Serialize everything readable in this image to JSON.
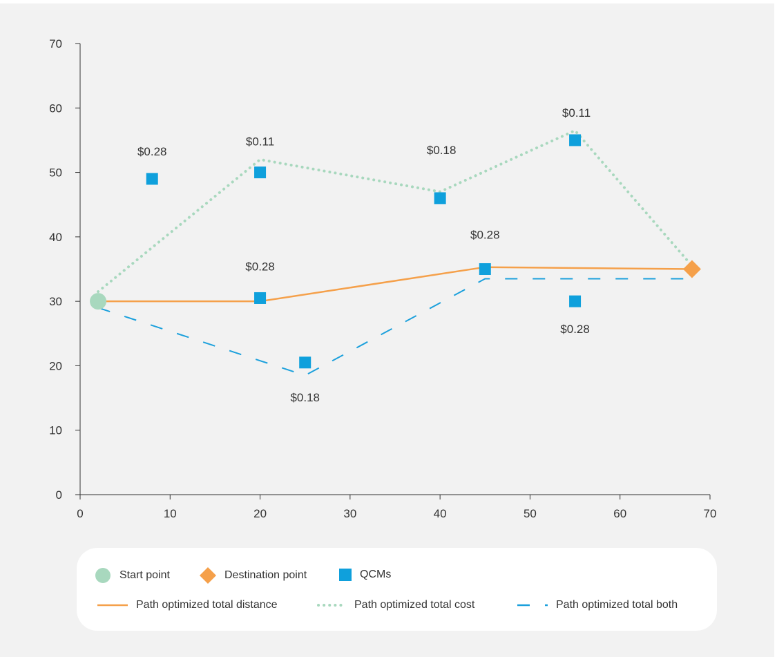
{
  "chart_data": {
    "type": "scatter",
    "xlim": [
      0,
      70
    ],
    "ylim": [
      0,
      70
    ],
    "x_ticks": [
      0,
      10,
      20,
      30,
      40,
      50,
      60,
      70
    ],
    "y_ticks": [
      0,
      10,
      20,
      30,
      40,
      50,
      60,
      70
    ],
    "grid": false,
    "legend_position": "bottom",
    "start_point": {
      "x": 2,
      "y": 30
    },
    "destination_point": {
      "x": 68,
      "y": 35
    },
    "qcms": [
      {
        "x": 8,
        "y": 49,
        "label": "$0.28"
      },
      {
        "x": 20,
        "y": 50,
        "label": "$0.11"
      },
      {
        "x": 20,
        "y": 30.5,
        "label": "$0.28"
      },
      {
        "x": 25,
        "y": 20.5,
        "label": "$0.18"
      },
      {
        "x": 40,
        "y": 46,
        "label": "$0.18"
      },
      {
        "x": 45,
        "y": 35,
        "label": "$0.28"
      },
      {
        "x": 55,
        "y": 55,
        "label": "$0.11"
      },
      {
        "x": 55,
        "y": 30,
        "label": "$0.28"
      }
    ],
    "series": [
      {
        "name": "Path optimized total distance",
        "style": "solid",
        "color": "#f5a04a",
        "points": [
          [
            2,
            30
          ],
          [
            20,
            30
          ],
          [
            45,
            35.3
          ],
          [
            68,
            35
          ]
        ]
      },
      {
        "name": "Path optimized total cost",
        "style": "dotted",
        "color": "#a8d8be",
        "points": [
          [
            2,
            31.5
          ],
          [
            20,
            52
          ],
          [
            40,
            47
          ],
          [
            55,
            56.5
          ],
          [
            68,
            35.5
          ]
        ]
      },
      {
        "name": "Path optimized total both",
        "style": "dashed",
        "color": "#1ba0dc",
        "points": [
          [
            2,
            29
          ],
          [
            25,
            18.5
          ],
          [
            45,
            33.5
          ],
          [
            68,
            33.5
          ]
        ]
      }
    ],
    "colors": {
      "start": "#a8d8be",
      "destination": "#f5a04a",
      "qcm": "#0fa0dc",
      "axis": "#333333"
    }
  },
  "legend": {
    "start": "Start point",
    "destination": "Destination point",
    "qcms": "QCMs",
    "distance": "Path optimized total distance",
    "cost": "Path optimized total cost",
    "both": "Path optimized total both"
  }
}
